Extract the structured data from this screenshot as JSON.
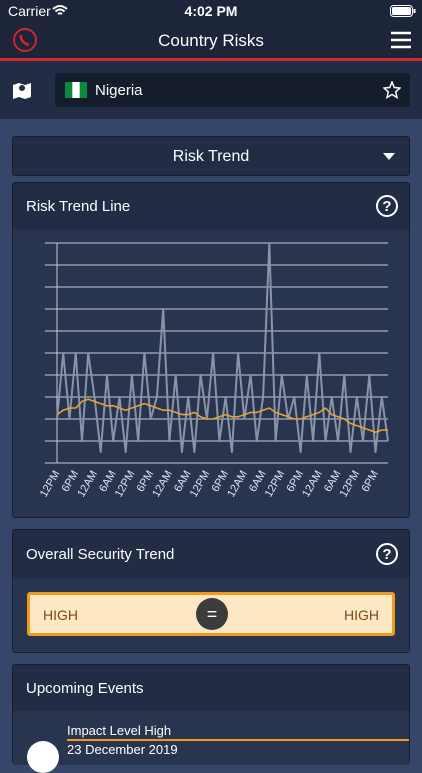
{
  "status_bar": {
    "carrier": "Carrier",
    "time": "4:02 PM"
  },
  "header": {
    "title": "Country Risks"
  },
  "country": {
    "name": "Nigeria"
  },
  "dropdown": {
    "label": "Risk Trend"
  },
  "risk_trend_card": {
    "title": "Risk Trend Line"
  },
  "chart_data": {
    "type": "line",
    "categories": [
      "12PM",
      null,
      null,
      "6PM",
      null,
      null,
      "12AM",
      null,
      null,
      "6AM",
      null,
      null,
      "12PM",
      null,
      null,
      "6PM",
      null,
      null,
      "12AM",
      null,
      null,
      "6AM",
      null,
      null,
      "12PM",
      null,
      null,
      "6PM",
      null,
      null,
      "12AM",
      null,
      null,
      "6AM",
      null,
      null,
      "12PM",
      null,
      null,
      "6PM",
      null,
      null,
      "12AM",
      null,
      null,
      "6AM",
      null,
      null,
      "12PM",
      null,
      null,
      "6PM",
      null,
      null
    ],
    "series": [
      {
        "color": "#8a94a8",
        "values": [
          2,
          5,
          2,
          5,
          1,
          5,
          3,
          0.5,
          4,
          1,
          3,
          0.5,
          4,
          1,
          5,
          2,
          3,
          7,
          1,
          4,
          0.5,
          3,
          0.5,
          4,
          2,
          5,
          1,
          3,
          0.5,
          5,
          2,
          4,
          1,
          3,
          10,
          1,
          4,
          2,
          3,
          0.5,
          4,
          1,
          5,
          1,
          3,
          1,
          4,
          0.5,
          3,
          1,
          4,
          0.5,
          3,
          1
        ]
      },
      {
        "color": "#e3a33a",
        "values": [
          2.2,
          2.4,
          2.5,
          2.5,
          2.8,
          2.9,
          2.8,
          2.7,
          2.6,
          2.6,
          2.5,
          2.4,
          2.5,
          2.6,
          2.7,
          2.6,
          2.5,
          2.4,
          2.4,
          2.3,
          2.2,
          2.2,
          2.3,
          2.1,
          2.0,
          2.0,
          2.1,
          2.2,
          2.1,
          2.1,
          2.2,
          2.3,
          2.3,
          2.4,
          2.5,
          2.3,
          2.2,
          2.1,
          2.0,
          2.0,
          2.1,
          2.2,
          2.3,
          2.5,
          2.2,
          2.1,
          2.0,
          1.8,
          1.7,
          1.6,
          1.5,
          1.4,
          1.5,
          1.5
        ]
      }
    ],
    "ylim": [
      0,
      10
    ],
    "yticks": [
      0,
      1,
      2,
      3,
      4,
      5,
      6,
      7,
      8,
      9,
      10
    ],
    "grid": true
  },
  "security_card": {
    "title": "Overall Security Trend",
    "left": "HIGH",
    "symbol": "=",
    "right": "HIGH"
  },
  "events_card": {
    "title": "Upcoming Events",
    "event": {
      "level": "Impact Level High",
      "date": "23 December 2019"
    }
  }
}
